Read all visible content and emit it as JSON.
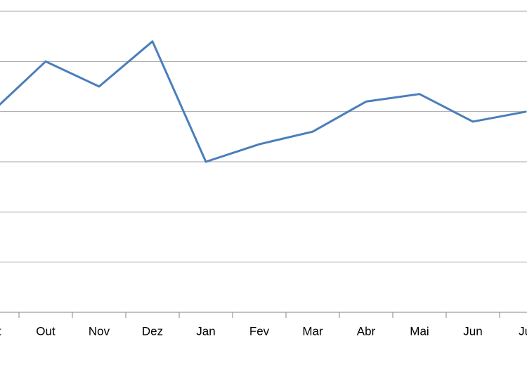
{
  "chart_data": {
    "type": "line",
    "categories": [
      "Set",
      "Out",
      "Nov",
      "Dez",
      "Jan",
      "Fev",
      "Mar",
      "Abr",
      "Mai",
      "Jun",
      "Jul"
    ],
    "series": [
      {
        "color": "#4a7ebb",
        "values": [
          4.0,
          5.0,
          4.5,
          5.4,
          3.0,
          3.35,
          3.6,
          4.2,
          4.35,
          3.8,
          4.0
        ]
      }
    ],
    "ylim": [
      0,
      6
    ],
    "yticks": [
      0,
      1,
      2,
      3,
      4,
      5,
      6
    ],
    "grid": true
  }
}
